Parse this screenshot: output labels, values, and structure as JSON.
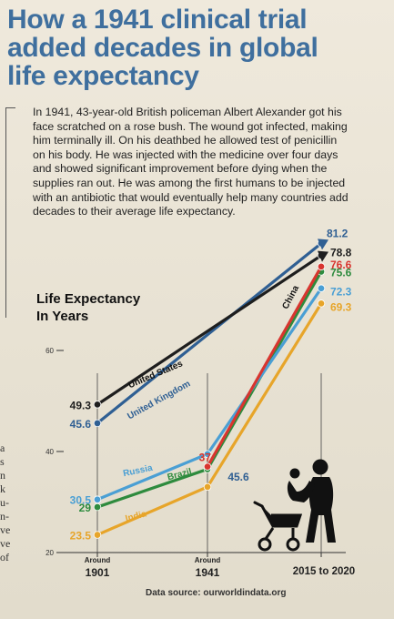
{
  "title": "How a 1941 clinical trial added decades in global life expectancy",
  "intro": "In 1941, 43-year-old British policeman Albert Alexander got his face scratched on a rose bush. The wound got infected, making him terminally ill. On his deathbed he allowed test of penicillin on his body. He was injected with the medicine over four days and showed significant improvement before dying when the supplies ran out. He was among the first humans to be injected with an antibiotic that would eventually help many countries add decades to their average life expectancy.",
  "source": "Data source: ourworldindata.org",
  "side_text": [
    "a",
    "",
    "s",
    "n",
    "",
    "k",
    "u-",
    "n-",
    "ve",
    "ve",
    "of"
  ],
  "colors": {
    "title": "#3f6f9e",
    "United States": "#1e1e1e",
    "United Kingdom": "#2f5f93",
    "Russia": "#4a9fd4",
    "Brazil": "#2e8b3e",
    "India": "#e7a52a",
    "China": "#d8352f"
  },
  "icons": [
    "mother-child-icon",
    "stroller-icon"
  ],
  "chart_data": {
    "type": "line",
    "title": "Life Expectancy In Years",
    "ylabel": "",
    "categories": [
      "Around 1901",
      "Around 1941",
      "2015 to 2020"
    ],
    "ylim": [
      20,
      85
    ],
    "yticks": [
      20,
      40,
      60
    ],
    "grid": false,
    "series": [
      {
        "name": "United States",
        "values": [
          49.3,
          null,
          78.8
        ],
        "labels": [
          "49.3",
          "",
          "78.8"
        ]
      },
      {
        "name": "United Kingdom",
        "values": [
          45.6,
          null,
          81.2
        ],
        "labels": [
          "45.6",
          "",
          "81.2"
        ]
      },
      {
        "name": "Russia",
        "values": [
          30.5,
          39.5,
          72.3
        ],
        "labels": [
          "30.5",
          "",
          "72.3"
        ]
      },
      {
        "name": "Brazil",
        "values": [
          29,
          36.5,
          75.6
        ],
        "labels": [
          "29",
          "",
          "75.6"
        ]
      },
      {
        "name": "India",
        "values": [
          23.5,
          33,
          69.3
        ],
        "labels": [
          "23.5",
          "",
          "69.3"
        ]
      },
      {
        "name": "China",
        "values": [
          null,
          37,
          76.6
        ],
        "labels": [
          "",
          "37",
          "76.6"
        ]
      }
    ],
    "annotations": [
      {
        "text": "45.6",
        "series": "India",
        "x_index": 1
      }
    ]
  }
}
